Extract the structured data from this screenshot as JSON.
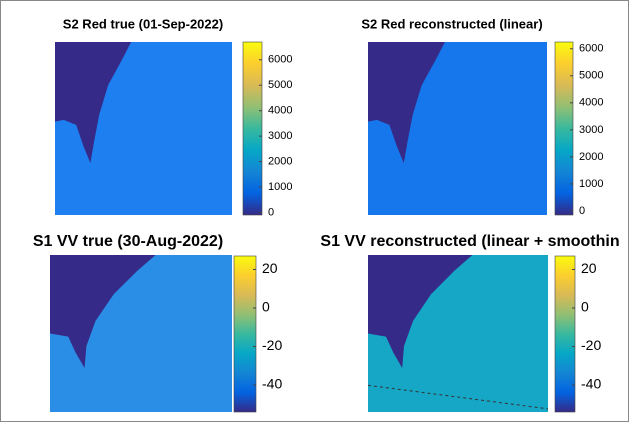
{
  "chart_data": [
    {
      "type": "image",
      "title": "S2 Red true (01-Sep-2022)",
      "clim": [
        -100,
        6700
      ],
      "ticks": [
        0,
        1000,
        2000,
        3000,
        4000,
        5000,
        6000
      ],
      "colormap": [
        "#352a87",
        "#0363e1",
        "#1485d4",
        "#06a7c6",
        "#38b99e",
        "#92bf73",
        "#d9ba56",
        "#fcce2e",
        "#f9fb0e"
      ]
    },
    {
      "type": "image",
      "title": "S2 Red reconstructed (linear)",
      "clim": [
        -150,
        6250
      ],
      "ticks": [
        0,
        1000,
        2000,
        3000,
        4000,
        5000,
        6000
      ],
      "colormap": [
        "#352a87",
        "#0363e1",
        "#1485d4",
        "#06a7c6",
        "#38b99e",
        "#92bf73",
        "#d9ba56",
        "#fcce2e",
        "#f9fb0e"
      ]
    },
    {
      "type": "image",
      "title": "S1 VV true (30-Aug-2022)",
      "clim": [
        -54,
        27
      ],
      "ticks": [
        -40,
        -20,
        0,
        20
      ],
      "colormap": [
        "#352a87",
        "#0363e1",
        "#1485d4",
        "#06a7c6",
        "#38b99e",
        "#92bf73",
        "#d9ba56",
        "#fcce2e",
        "#f9fb0e"
      ]
    },
    {
      "type": "image",
      "title": "S1 VV reconstructed (linear + smoothin",
      "clim": [
        -54,
        27
      ],
      "ticks": [
        -40,
        -20,
        0,
        20
      ],
      "colormap": [
        "#352a87",
        "#0363e1",
        "#1485d4",
        "#06a7c6",
        "#38b99e",
        "#92bf73",
        "#d9ba56",
        "#fcce2e",
        "#f9fb0e"
      ]
    }
  ]
}
